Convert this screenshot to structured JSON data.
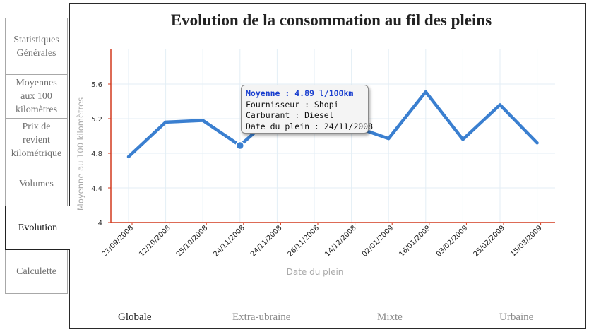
{
  "side_tabs": [
    {
      "lines": [
        "Statistiques",
        "Générales"
      ],
      "active": false
    },
    {
      "lines": [
        "Moyennes",
        "aux 100",
        "kilomètres"
      ],
      "active": false
    },
    {
      "lines": [
        "Prix de",
        "revient",
        "kilométrique"
      ],
      "active": false
    },
    {
      "lines": [
        "Volumes"
      ],
      "active": false
    },
    {
      "lines": [
        "Evolution"
      ],
      "active": true
    },
    {
      "lines": [
        "Calculette"
      ],
      "active": false
    }
  ],
  "tooltip": {
    "title": "Moyenne : 4.89 l/100km",
    "supplier": "Fournisseur : Shopi",
    "fuel": "Carburant : Diesel",
    "date": "Date du plein : 24/11/2008"
  },
  "bottom_tabs": [
    {
      "label": "Globale",
      "active": true
    },
    {
      "label": "Extra-ubraine",
      "active": false
    },
    {
      "label": "Mixte",
      "active": false
    },
    {
      "label": "Urbaine",
      "active": false
    }
  ],
  "chart_data": {
    "type": "line",
    "title": "Evolution de la consommation au fil des pleins",
    "xlabel": "Date du plein",
    "ylabel": "Moyenne au 100 kilomètres",
    "categories": [
      "21/09/2008",
      "12/10/2008",
      "25/10/2008",
      "24/11/2008",
      "24/11/2008",
      "26/11/2008",
      "14/12/2008",
      "02/01/2009",
      "16/01/2009",
      "03/02/2009",
      "25/02/2009",
      "15/03/2009"
    ],
    "values": [
      4.76,
      5.16,
      5.18,
      4.89,
      5.27,
      5.3,
      5.12,
      4.97,
      5.51,
      4.96,
      5.36,
      4.92
    ],
    "ylim": [
      4,
      6.0
    ],
    "yticks": [
      "4",
      "4.4",
      "4.8",
      "5.2",
      "5.6"
    ],
    "highlight_index": 3,
    "grid": true,
    "line_color": "#3a7fd0",
    "axis_color": "#d23a1e"
  }
}
